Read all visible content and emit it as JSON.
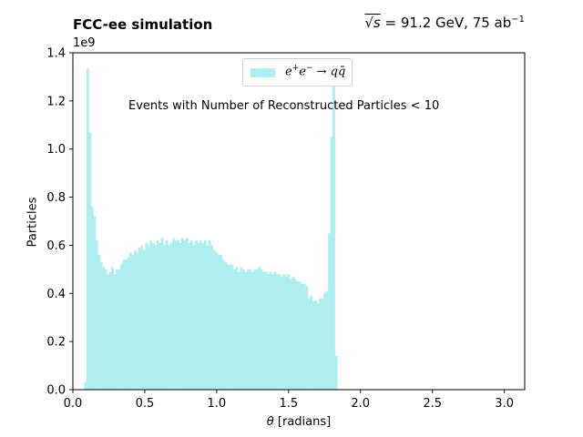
{
  "header": {
    "left_title": "FCC-ee simulation",
    "right_title_sqrt_var": "s",
    "right_title_eq": " = 91.2 GeV, 75 ab",
    "right_title_sup": "−1"
  },
  "chart_data": {
    "type": "bar",
    "title": "FCC-ee simulation",
    "xlabel_symbol": "θ",
    "xlabel_unit": " [radians]",
    "ylabel": "Particles",
    "y_multiplier": "1e9",
    "annotation": "Events with Number of Reconstructed Particles < 10",
    "legend": {
      "label_main": "e",
      "label_sup1": "+",
      "label_mid": "e",
      "label_sup2": "−",
      "label_end": " → qq̄",
      "placement": "top-center"
    },
    "color": "#afeeee",
    "xlim": [
      0.0,
      3.14159
    ],
    "ylim": [
      0,
      1400000000
    ],
    "xticks": [
      0.0,
      0.5,
      1.0,
      1.5,
      2.0,
      2.5,
      3.0
    ],
    "xtick_labels": [
      "0.0",
      "0.5",
      "1.0",
      "1.5",
      "2.0",
      "2.5",
      "3.0"
    ],
    "yticks": [
      0,
      200000000,
      400000000,
      600000000,
      800000000,
      1000000000,
      1200000000,
      1400000000
    ],
    "ytick_labels": [
      "0.0",
      "0.2",
      "0.4",
      "0.6",
      "0.8",
      "1.0",
      "1.2",
      "1.4"
    ],
    "bin_start": 0.0785,
    "bin_width": 0.0157,
    "values": [
      30000000,
      1335000000,
      1070000000,
      760000000,
      720000000,
      620000000,
      560000000,
      530000000,
      510000000,
      500000000,
      480000000,
      490000000,
      510000000,
      480000000,
      500000000,
      500000000,
      520000000,
      540000000,
      540000000,
      550000000,
      570000000,
      560000000,
      580000000,
      570000000,
      590000000,
      600000000,
      580000000,
      610000000,
      600000000,
      620000000,
      610000000,
      600000000,
      620000000,
      610000000,
      630000000,
      600000000,
      620000000,
      600000000,
      610000000,
      630000000,
      620000000,
      620000000,
      610000000,
      630000000,
      620000000,
      630000000,
      610000000,
      620000000,
      600000000,
      620000000,
      610000000,
      620000000,
      610000000,
      620000000,
      600000000,
      620000000,
      600000000,
      580000000,
      570000000,
      560000000,
      560000000,
      540000000,
      530000000,
      520000000,
      520000000,
      520000000,
      500000000,
      510000000,
      490000000,
      510000000,
      500000000,
      490000000,
      500000000,
      500000000,
      490000000,
      500000000,
      500000000,
      510000000,
      500000000,
      490000000,
      490000000,
      480000000,
      490000000,
      480000000,
      490000000,
      480000000,
      480000000,
      470000000,
      480000000,
      470000000,
      480000000,
      460000000,
      470000000,
      460000000,
      450000000,
      450000000,
      440000000,
      440000000,
      430000000,
      380000000,
      390000000,
      370000000,
      370000000,
      360000000,
      380000000,
      380000000,
      400000000,
      410000000,
      650000000,
      1050000000,
      1290000000,
      140000000
    ]
  }
}
